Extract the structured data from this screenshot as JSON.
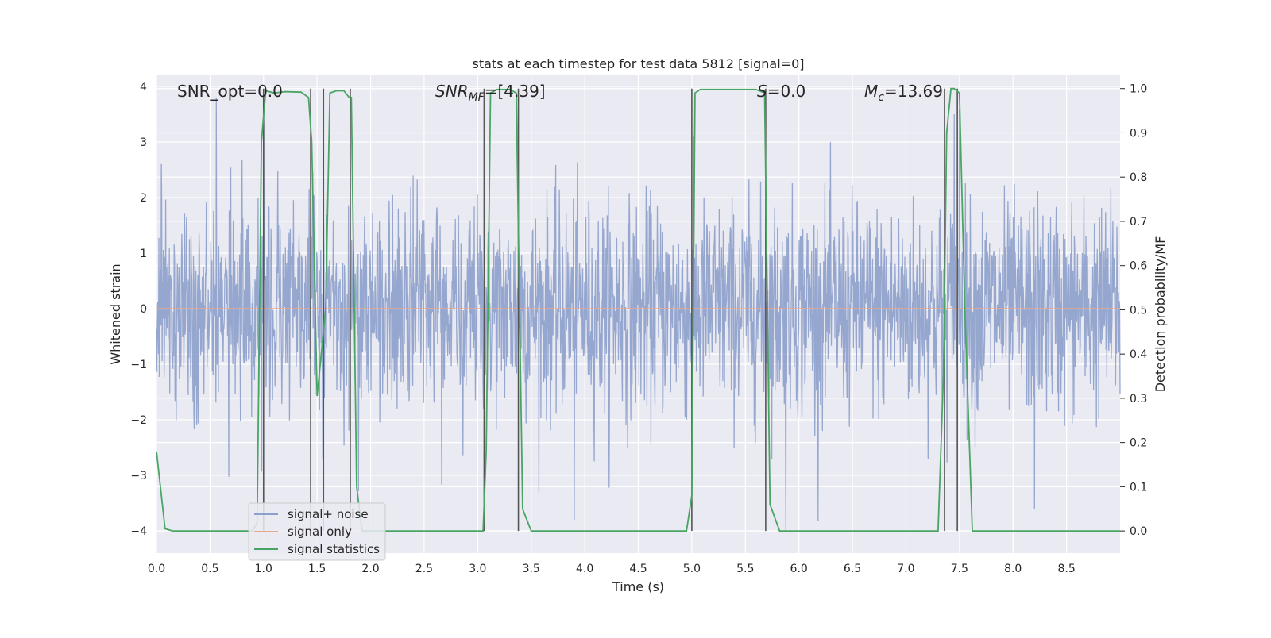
{
  "chart_data": {
    "type": "line",
    "title": "stats at each timestep for test data 5812 [signal=0]",
    "xlabel": "Time (s)",
    "ylabel": "Whitened strain",
    "y2label": "Detection probability/MF",
    "xlim": [
      0.0,
      9.0
    ],
    "ylim": [
      -4.4,
      4.2
    ],
    "y2lim": [
      -0.05,
      1.03
    ],
    "xticks": [
      "0.0",
      "0.5",
      "1.0",
      "1.5",
      "2.0",
      "2.5",
      "3.0",
      "3.5",
      "4.0",
      "4.5",
      "5.0",
      "5.5",
      "6.0",
      "6.5",
      "7.0",
      "7.5",
      "8.0",
      "8.5"
    ],
    "yticks": [
      "4",
      "3",
      "2",
      "1",
      "0",
      "−1",
      "−2",
      "−3",
      "−4"
    ],
    "y2ticks": [
      "1.0",
      "0.9",
      "0.8",
      "0.7",
      "0.6",
      "0.5",
      "0.4",
      "0.3",
      "0.2",
      "0.1",
      "0.0"
    ],
    "annotations": {
      "snr_opt": "SNR_opt=0.0",
      "snr_mf_main": "SNR",
      "snr_mf_sub": "MF",
      "snr_mf_value": "=[4.39]",
      "s_main": "S",
      "s_value": "=0.0",
      "mc_main": "M",
      "mc_sub": "c",
      "mc_value": "=13.69"
    },
    "legend": {
      "position": "lower-left",
      "entries": [
        "signal+ noise",
        "signal only",
        "signal statistics"
      ]
    },
    "series": [
      {
        "name": "signal+ noise",
        "axis": "left",
        "color": "#8da0cb",
        "description_values": {
          "mean": 0.0,
          "std": 1.0,
          "x_start": 0.0,
          "x_end": 9.0,
          "notable_peaks": [
            [
              0.56,
              3.8
            ],
            [
              1.0,
              3.6
            ],
            [
              7.45,
              3.5
            ],
            [
              7.5,
              3.6
            ],
            [
              3.9,
              -3.8
            ],
            [
              5.88,
              -4.0
            ],
            [
              8.2,
              -3.6
            ]
          ]
        }
      },
      {
        "name": "signal only",
        "axis": "left",
        "color": "#e8a78f",
        "x": [
          0.0,
          9.0
        ],
        "y": [
          0.0,
          0.0
        ]
      },
      {
        "name": "signal statistics",
        "axis": "right",
        "color": "#4aa564",
        "x": [
          0.0,
          0.08,
          0.15,
          0.3,
          0.6,
          0.9,
          0.94,
          0.98,
          1.02,
          1.1,
          1.2,
          1.35,
          1.42,
          1.45,
          1.5,
          1.58,
          1.62,
          1.68,
          1.75,
          1.8,
          1.82,
          1.87,
          1.92,
          2.0,
          2.5,
          3.0,
          3.05,
          3.08,
          3.12,
          3.18,
          3.3,
          3.36,
          3.42,
          3.5,
          3.7,
          4.0,
          4.5,
          4.95,
          5.0,
          5.03,
          5.08,
          5.3,
          5.6,
          5.68,
          5.73,
          5.82,
          5.9,
          6.5,
          7.0,
          7.3,
          7.35,
          7.38,
          7.42,
          7.45,
          7.5,
          7.55,
          7.62,
          7.7,
          8.0,
          9.0
        ],
        "y": [
          0.18,
          0.005,
          0.0,
          0.0,
          0.0,
          0.0,
          0.02,
          0.88,
          0.995,
          0.99,
          0.993,
          0.992,
          0.98,
          0.88,
          0.305,
          0.5,
          0.99,
          0.995,
          0.995,
          0.98,
          0.98,
          0.1,
          0.0,
          0.0,
          0.0,
          0.0,
          0.0,
          0.18,
          0.99,
          0.998,
          0.998,
          0.99,
          0.05,
          0.0,
          0.0,
          0.0,
          0.0,
          0.0,
          0.08,
          0.99,
          0.998,
          0.998,
          0.998,
          0.99,
          0.06,
          0.0,
          0.0,
          0.0,
          0.0,
          0.0,
          0.35,
          0.9,
          1.0,
          1.0,
          0.99,
          0.5,
          0.0,
          0.0,
          0.0,
          0.0
        ]
      }
    ],
    "vertical_markers": {
      "color": "#555555",
      "x": [
        1.0,
        1.44,
        1.56,
        1.81,
        3.06,
        3.38,
        5.0,
        5.69,
        7.36,
        7.48
      ]
    }
  }
}
